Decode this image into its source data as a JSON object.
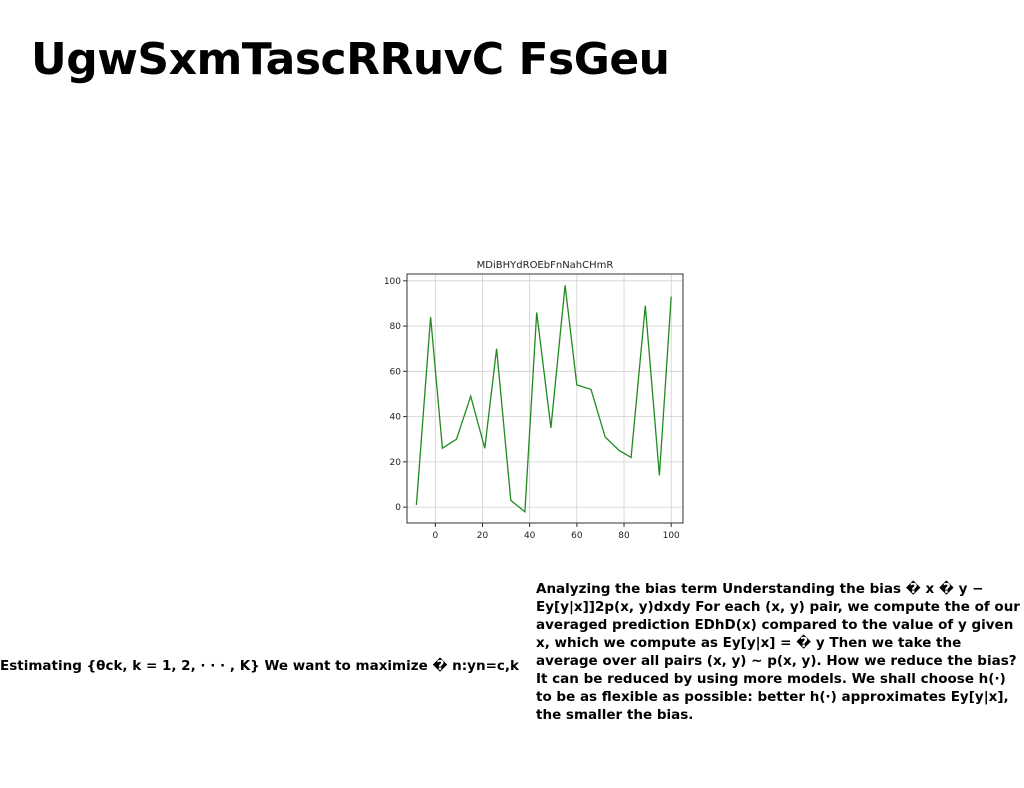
{
  "page": {
    "title": "UgwSxmTascRRuvC FsGeu"
  },
  "left_paragraph": "Estimating {θck, k = 1, 2, · · · , K} We want to maximize � n:yn=c,k",
  "right_paragraph": "Analyzing the bias term Understanding the bias � x � y − Ey[y|x]]2p(x, y)dxdy For each (x, y) pair, we compute the of our averaged prediction EDhD(x) compared to the value of y given x, which we compute as Ey[y|x] = � y Then we take the average over all pairs (x, y) ∼ p(x, y). How we reduce the bias? It can be reduced by using more models. We shall choose h(·) to be as flexible as possible: better h(·) approximates Ey[y|x], the smaller the bias.",
  "colors": {
    "line": "#1f8b1f",
    "grid": "#d0d0d0",
    "axis": "#333333"
  },
  "chart_data": {
    "type": "line",
    "title": "MDiBHYdROEbFnNahCHmR",
    "xlabel": "",
    "ylabel": "",
    "xlim": [
      -12,
      105
    ],
    "ylim": [
      -7,
      103
    ],
    "xticks": [
      0,
      20,
      40,
      60,
      80,
      100
    ],
    "yticks": [
      0,
      20,
      40,
      60,
      80,
      100
    ],
    "grid": true,
    "series": [
      {
        "x": [
          -8,
          -2,
          3,
          9,
          15,
          21,
          26,
          32,
          38,
          43,
          49,
          55,
          60,
          66,
          72,
          78,
          83,
          89,
          95,
          100
        ],
        "y": [
          1,
          84,
          26,
          30,
          49,
          26,
          70,
          3,
          -2,
          86,
          35,
          98,
          54,
          52,
          31,
          25,
          22,
          89,
          14,
          93
        ]
      }
    ]
  }
}
